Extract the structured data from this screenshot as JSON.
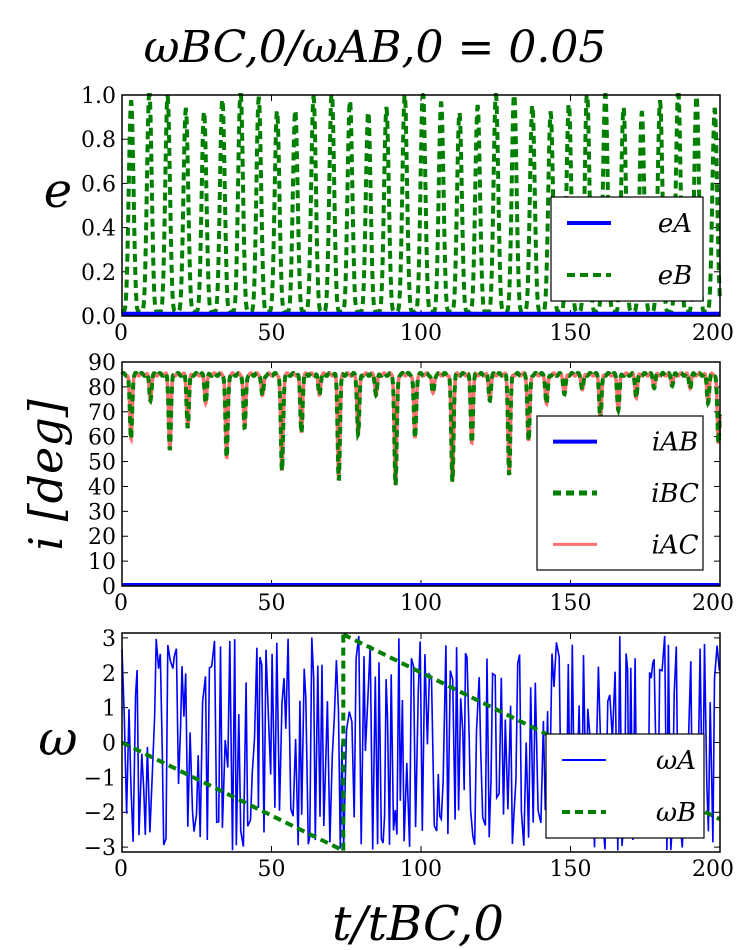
{
  "figure": {
    "title": "ωBC,0/ωAB,0 = 0.05",
    "xlabel": "t/tBC,0"
  },
  "colors": {
    "blue": "#0000ff",
    "green": "#007f00",
    "salmon": "#ff7070"
  },
  "chart_data": [
    {
      "type": "line",
      "panel": "eccentricity",
      "ylabel": "e",
      "xlim": [
        0,
        200
      ],
      "ylim": [
        0,
        1.0
      ],
      "xticks": [
        "0",
        "50",
        "100",
        "150",
        "200"
      ],
      "yticks": [
        "0.0",
        "0.2",
        "0.4",
        "0.6",
        "0.8",
        "1.0"
      ],
      "legend_position": "lower-right",
      "series": [
        {
          "name": "eA",
          "style": "solid",
          "color": "#0000ff",
          "description": "near zero throughout",
          "level": 0.01
        },
        {
          "name": "eB",
          "style": "dashed",
          "color": "#007f00",
          "description": "oscillates 0 to ~1 with period ~6",
          "oscillation": {
            "min": 0.0,
            "max_range": [
              0.9,
              1.0
            ],
            "period": 6.1
          }
        }
      ]
    },
    {
      "type": "line",
      "panel": "inclination",
      "ylabel": "i [deg]",
      "xlim": [
        0,
        200
      ],
      "ylim": [
        0,
        90
      ],
      "xticks": [
        "0",
        "50",
        "100",
        "150",
        "200"
      ],
      "yticks": [
        "0",
        "10",
        "20",
        "30",
        "40",
        "50",
        "60",
        "70",
        "80",
        "90"
      ],
      "legend_position": "center-right",
      "series": [
        {
          "name": "iAB",
          "style": "solid",
          "color": "#0000ff",
          "level": 0.5
        },
        {
          "name": "iBC",
          "style": "dashed",
          "color": "#007f00",
          "baseline": 85
        },
        {
          "name": "iAC",
          "style": "solid",
          "color": "#ff7070",
          "baseline": 85
        }
      ],
      "dips": [
        {
          "x": 3,
          "y": 59
        },
        {
          "x": 9.5,
          "y": 75
        },
        {
          "x": 16,
          "y": 55
        },
        {
          "x": 22,
          "y": 64
        },
        {
          "x": 28,
          "y": 74
        },
        {
          "x": 35,
          "y": 51
        },
        {
          "x": 41,
          "y": 63
        },
        {
          "x": 47,
          "y": 76
        },
        {
          "x": 53.5,
          "y": 46
        },
        {
          "x": 60,
          "y": 62
        },
        {
          "x": 66,
          "y": 77
        },
        {
          "x": 72.5,
          "y": 43
        },
        {
          "x": 79,
          "y": 61
        },
        {
          "x": 85,
          "y": 77
        },
        {
          "x": 91.5,
          "y": 40
        },
        {
          "x": 98,
          "y": 59
        },
        {
          "x": 104,
          "y": 77
        },
        {
          "x": 110.5,
          "y": 42
        },
        {
          "x": 117,
          "y": 58
        },
        {
          "x": 123,
          "y": 75
        },
        {
          "x": 129.5,
          "y": 45
        },
        {
          "x": 136,
          "y": 58
        },
        {
          "x": 142,
          "y": 73
        },
        {
          "x": 148,
          "y": 77
        },
        {
          "x": 154,
          "y": 79
        },
        {
          "x": 160,
          "y": 67
        },
        {
          "x": 166,
          "y": 71
        },
        {
          "x": 172,
          "y": 76
        },
        {
          "x": 178,
          "y": 80
        },
        {
          "x": 184,
          "y": 81
        },
        {
          "x": 190,
          "y": 80
        },
        {
          "x": 196,
          "y": 74
        },
        {
          "x": 199.5,
          "y": 57
        }
      ]
    },
    {
      "type": "line",
      "panel": "argument-of-pericenter",
      "ylabel": "ω",
      "xlim": [
        0,
        200
      ],
      "ylim": [
        -3.14,
        3.14
      ],
      "xticks": [
        "0",
        "50",
        "100",
        "150",
        "200"
      ],
      "yticks": [
        "−3",
        "−2",
        "−1",
        "0",
        "1",
        "2",
        "3"
      ],
      "legend_position": "lower-right",
      "series": [
        {
          "name": "ωA",
          "style": "solid",
          "color": "#0000ff",
          "description": "rapid noisy oscillation spanning −π to π"
        },
        {
          "name": "ωB",
          "style": "dashed",
          "color": "#007f00",
          "segments": [
            {
              "x": [
                0,
                74
              ],
              "y": [
                0,
                -3.1
              ]
            },
            {
              "x": [
                74,
                74
              ],
              "y": [
                -3.1,
                3.1
              ]
            },
            {
              "x": [
                74,
                200
              ],
              "y": [
                3.1,
                -2.2
              ]
            }
          ]
        }
      ]
    }
  ]
}
